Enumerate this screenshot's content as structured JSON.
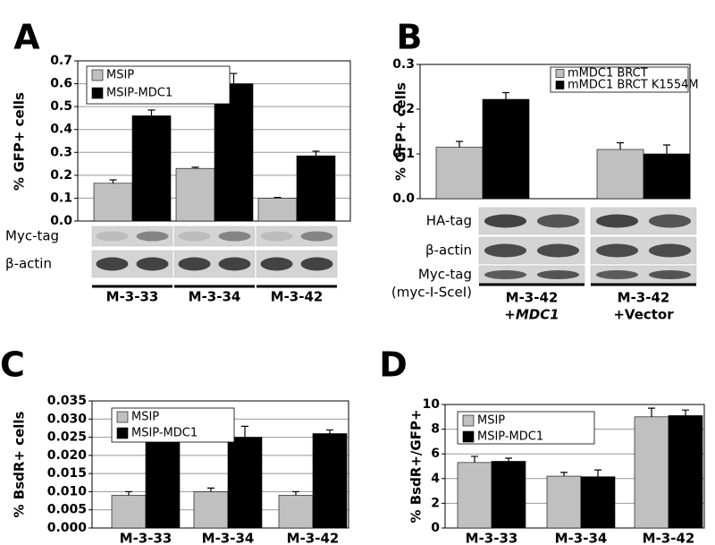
{
  "chart_data": [
    {
      "type": "bar",
      "panel": "A",
      "y_label": "% GFP+ cells",
      "categories": [
        "M-3-33",
        "M-3-34",
        "M-3-42"
      ],
      "series": [
        {
          "name": "MSIP",
          "color": "#c0c0c0",
          "values": [
            0.165,
            0.23,
            0.1
          ],
          "errors": [
            0.015,
            0.005,
            0.003
          ]
        },
        {
          "name": "MSIP-MDC1",
          "color": "#000000",
          "values": [
            0.46,
            0.6,
            0.285
          ],
          "errors": [
            0.025,
            0.045,
            0.02
          ]
        }
      ],
      "ylim": [
        0,
        0.7
      ],
      "yticks": [
        {
          "value": 0,
          "label": "0.0"
        },
        0.1,
        0.2,
        0.3,
        0.4,
        0.5,
        0.6,
        0.7
      ],
      "grid": true,
      "legend": "upper left",
      "blot_labels": [
        "Myc-tag",
        "β-actin"
      ]
    },
    {
      "type": "bar",
      "panel": "B",
      "y_label": "% GFP+ cells",
      "categories": [
        "M-3-42",
        "M-3-42"
      ],
      "category_sublabels": [
        "+MDC1",
        "+Vector"
      ],
      "series": [
        {
          "name": "mMDC1 BRCT",
          "color": "#c0c0c0",
          "values": [
            0.115,
            0.11
          ],
          "errors": [
            0.013,
            0.015
          ]
        },
        {
          "name": "mMDC1 BRCT K1554M",
          "color": "#000000",
          "values": [
            0.222,
            0.1
          ],
          "errors": [
            0.015,
            0.02
          ]
        }
      ],
      "ylim": [
        0,
        0.3
      ],
      "yticks": [
        {
          "value": 0,
          "label": "0.0"
        },
        0.1,
        0.2,
        0.3
      ],
      "grid": false,
      "legend": "upper right",
      "blot_labels": [
        "HA-tag",
        "β-actin",
        "Myc-tag"
      ],
      "blot_sublabel": "(myc-I-SceI)"
    },
    {
      "type": "bar",
      "panel": "C",
      "y_label": "% BsdR+ cells",
      "categories": [
        "M-3-33",
        "M-3-34",
        "M-3-42"
      ],
      "series": [
        {
          "name": "MSIP",
          "color": "#c0c0c0",
          "values": [
            0.009,
            0.01,
            0.009
          ],
          "errors": [
            0.001,
            0.001,
            0.001
          ]
        },
        {
          "name": "MSIP-MDC1",
          "color": "#000000",
          "values": [
            0.025,
            0.025,
            0.026
          ],
          "errors": [
            0.001,
            0.003,
            0.001
          ]
        }
      ],
      "ylim": [
        0,
        0.035
      ],
      "yticks": [
        {
          "value": 0,
          "label": "0.000"
        },
        0.005,
        {
          "value": 0.01,
          "label": "0.010"
        },
        0.015,
        {
          "value": 0.02,
          "label": "0.020"
        },
        0.025,
        {
          "value": 0.03,
          "label": "0.030"
        },
        0.035
      ],
      "grid": true,
      "legend": "upper left"
    },
    {
      "type": "bar",
      "panel": "D",
      "y_label": "% BsdR+/GFP+",
      "categories": [
        "M-3-33",
        "M-3-34",
        "M-3-42"
      ],
      "series": [
        {
          "name": "MSIP",
          "color": "#c0c0c0",
          "values": [
            5.3,
            4.2,
            9.0
          ],
          "errors": [
            0.5,
            0.3,
            0.7
          ]
        },
        {
          "name": "MSIP-MDC1",
          "color": "#000000",
          "values": [
            5.4,
            4.15,
            9.1
          ],
          "errors": [
            0.25,
            0.55,
            0.45
          ]
        }
      ],
      "ylim": [
        0,
        10
      ],
      "yticks": [
        0,
        2,
        4,
        6,
        8,
        10
      ],
      "grid": true,
      "legend": "upper left"
    }
  ]
}
